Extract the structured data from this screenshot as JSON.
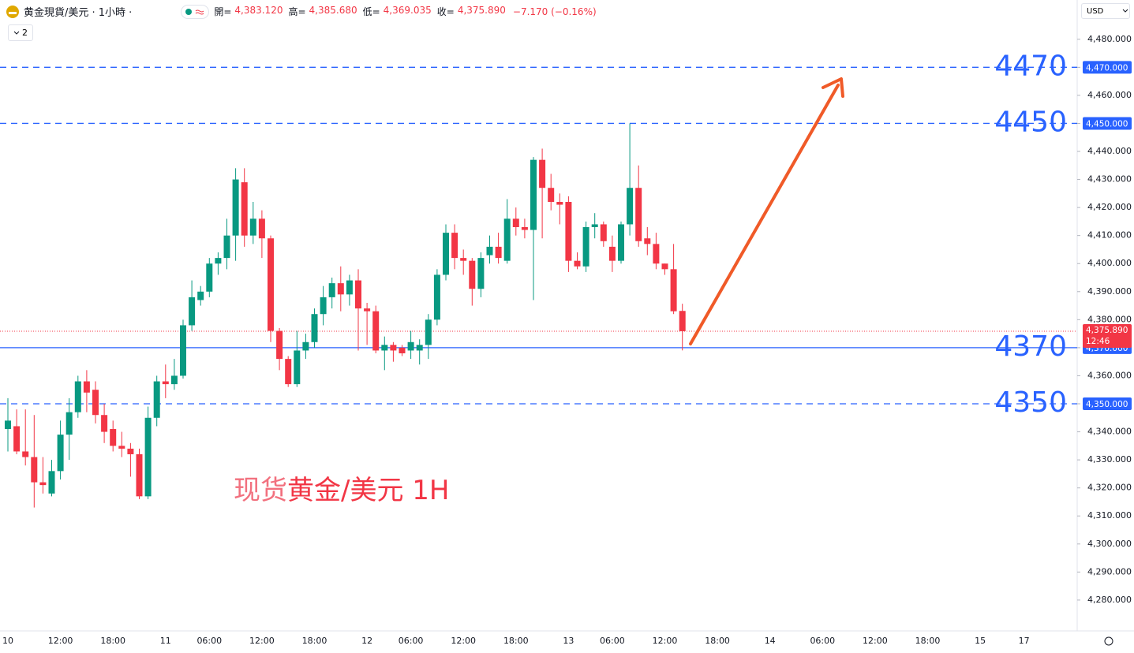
{
  "header": {
    "symbol": "黄金現貨/美元 · 1小時 ·",
    "indicator_count": "2",
    "currency": "USD",
    "ohlc": [
      {
        "label": "開=",
        "value": "4,383.120"
      },
      {
        "label": "高=",
        "value": "4,385.680"
      },
      {
        "label": "低=",
        "value": "4,369.035"
      },
      {
        "label": "收=",
        "value": "4,375.890"
      }
    ],
    "change": "−7.170 (−0.16%)"
  },
  "chart_data": {
    "type": "candlestick",
    "watermark": [
      "现货",
      "黄金/美元 1H"
    ],
    "up_color": "#089981",
    "down_color": "#f23645",
    "categories": [
      "10",
      null,
      null,
      null,
      null,
      null,
      "12:00",
      null,
      null,
      null,
      null,
      null,
      "18:00",
      null,
      null,
      null,
      null,
      null,
      "11",
      null,
      null,
      null,
      null,
      "06:00",
      null,
      null,
      null,
      null,
      null,
      "12:00",
      null,
      null,
      null,
      null,
      null,
      "18:00",
      null,
      null,
      null,
      null,
      null,
      "12",
      null,
      null,
      null,
      null,
      "06:00",
      null,
      null,
      null,
      null,
      null,
      "12:00",
      null,
      null,
      null,
      null,
      null,
      "18:00",
      null,
      null,
      null,
      null,
      null,
      "13",
      null,
      null,
      null,
      null,
      "06:00",
      null,
      null,
      null,
      null,
      null,
      "12:00",
      null,
      null,
      null,
      null,
      null,
      "18:00",
      null,
      null,
      null,
      null,
      null,
      "14",
      null,
      null,
      null,
      null,
      null,
      "06:00",
      null,
      null,
      null,
      null,
      null,
      "12:00",
      null,
      null,
      null,
      null,
      null,
      "18:00",
      null,
      null,
      null,
      null,
      null,
      "15",
      null,
      null,
      null,
      null,
      "17"
    ],
    "open": [
      4341,
      4342,
      4333,
      4331,
      4322,
      4318,
      4326,
      4339,
      4347,
      4358,
      4355,
      4346,
      4341,
      4335,
      4334,
      4332,
      4317,
      4345,
      4358,
      4357,
      4360,
      4378,
      4387,
      4390,
      4400,
      4402,
      4410,
      4429,
      4410,
      4416,
      4409,
      4376,
      4366,
      4357,
      4369,
      4372,
      4382,
      4388,
      4393,
      4389,
      4394,
      4384,
      4383,
      4369,
      4371,
      4370,
      4369,
      4369,
      4371,
      4380,
      4396,
      4411,
      4402,
      4401,
      4391,
      4403,
      4406,
      4401,
      4416,
      4413,
      4412,
      4437,
      4427,
      4422,
      4422,
      4401,
      4399,
      4413,
      4414,
      4406,
      4401,
      4414,
      4427,
      4409,
      4407,
      4400,
      4398,
      4383.12,
      null,
      null,
      null,
      null,
      null,
      null,
      null,
      null,
      null,
      null,
      null,
      null,
      null,
      null,
      null,
      null,
      null,
      null,
      null,
      null,
      null,
      null,
      null,
      null,
      null,
      null,
      null,
      null,
      null,
      null,
      null,
      null,
      null,
      null,
      null,
      null,
      null,
      null,
      null
    ],
    "high": [
      4352,
      4348,
      4348,
      4346,
      4331,
      4330,
      4344,
      4352,
      4360,
      4362,
      4358,
      4350,
      4344,
      4340,
      4336,
      4334,
      4349,
      4360,
      4364,
      4366,
      4380,
      4394,
      4392,
      4402,
      4404,
      4416,
      4434,
      4434,
      4422,
      4419,
      4410,
      4377,
      4367,
      4376,
      4375,
      4384,
      4392,
      4395,
      4399,
      4396,
      4398,
      4386,
      4385,
      4374,
      4372,
      4371,
      4376,
      4373,
      4382,
      4398,
      4414,
      4414,
      4405,
      4402,
      4404,
      4410,
      4411,
      4423,
      4420,
      4416,
      4438,
      4441,
      4432,
      4425,
      4424,
      4404,
      4415,
      4418,
      4415,
      4410,
      4415,
      4450,
      4435,
      4413,
      4411,
      4400,
      4407,
      4385.68,
      null,
      null,
      null,
      null,
      null,
      null,
      null,
      null,
      null,
      null,
      null,
      null,
      null,
      null,
      null,
      null,
      null,
      null,
      null,
      null,
      null,
      null,
      null,
      null,
      null,
      null,
      null,
      null,
      null,
      null,
      null,
      null,
      null,
      null,
      null,
      null,
      null,
      null,
      null
    ],
    "low": [
      4333,
      4332,
      4328,
      4313,
      4318,
      4317,
      4323,
      4330,
      4345,
      4347,
      4343,
      4336,
      4333,
      4331,
      4324,
      4316,
      4316,
      4342,
      4352,
      4355,
      4359,
      4376,
      4385,
      4388,
      4396,
      4398,
      4401,
      4406,
      4407,
      4402,
      4372,
      4362,
      4356,
      4356,
      4366,
      4370,
      4378,
      4384,
      4383,
      4385,
      4369,
      4371,
      4368,
      4362,
      4365,
      4367,
      4366,
      4364,
      4366,
      4378,
      4394,
      4398,
      4396,
      4385,
      4388,
      4400,
      4400,
      4400,
      4410,
      4409,
      4387,
      4409,
      4419,
      4414,
      4397,
      4398,
      4397,
      4409,
      4406,
      4397,
      4400,
      4410,
      4406,
      4403,
      4398,
      4396,
      4382,
      4369.035,
      null,
      null,
      null,
      null,
      null,
      null,
      null,
      null,
      null,
      null,
      null,
      null,
      null,
      null,
      null,
      null,
      null,
      null,
      null,
      null,
      null,
      null,
      null,
      null,
      null,
      null,
      null,
      null,
      null,
      null,
      null,
      null,
      null,
      null,
      null,
      null,
      null,
      null,
      null
    ],
    "close": [
      4344,
      4333,
      4331,
      4322,
      4321,
      4326,
      4339,
      4347,
      4358,
      4354,
      4346,
      4340,
      4335,
      4334,
      4332,
      4317,
      4345,
      4358,
      4357,
      4360,
      4378,
      4388,
      4390,
      4400,
      4402,
      4410,
      4430,
      4410,
      4416,
      4409,
      4376,
      4366,
      4357,
      4369,
      4372,
      4382,
      4388,
      4393,
      4389,
      4394,
      4384,
      4383,
      4369,
      4371,
      4369,
      4368,
      4372,
      4371,
      4380,
      4396,
      4411,
      4402,
      4401,
      4391,
      4402,
      4406,
      4402,
      4416,
      4413,
      4412,
      4437,
      4427,
      4422,
      4421,
      4401,
      4399,
      4413,
      4414,
      4408,
      4401,
      4414,
      4427,
      4408,
      4407,
      4400,
      4398,
      4383,
      4375.89,
      null,
      null,
      null,
      null,
      null,
      null,
      null,
      null,
      null,
      null,
      null,
      null,
      null,
      null,
      null,
      null,
      null,
      null,
      null,
      null,
      null,
      null,
      null,
      null,
      null,
      null,
      null,
      null,
      null,
      null,
      null,
      null,
      null,
      null,
      null,
      null,
      null,
      null,
      null
    ],
    "ylim": [
      4269,
      4494
    ],
    "yticks": [
      {
        "value": 4280,
        "label": "4,280.000"
      },
      {
        "value": 4290,
        "label": "4,290.000"
      },
      {
        "value": 4300,
        "label": "4,300.000"
      },
      {
        "value": 4310,
        "label": "4,310.000"
      },
      {
        "value": 4320,
        "label": "4,320.000"
      },
      {
        "value": 4330,
        "label": "4,330.000"
      },
      {
        "value": 4340,
        "label": "4,340.000"
      },
      {
        "value": 4350,
        "label": "4,350.000"
      },
      {
        "value": 4360,
        "label": "4,360.000"
      },
      {
        "value": 4370,
        "label": "4,370.000"
      },
      {
        "value": 4380,
        "label": "4,380.000"
      },
      {
        "value": 4390,
        "label": "4,390.000"
      },
      {
        "value": 4400,
        "label": "4,400.000"
      },
      {
        "value": 4410,
        "label": "4,410.000"
      },
      {
        "value": 4420,
        "label": "4,420.000"
      },
      {
        "value": 4430,
        "label": "4,430.000"
      },
      {
        "value": 4440,
        "label": "4,440.000"
      },
      {
        "value": 4450,
        "label": "4,450.000"
      },
      {
        "value": 4460,
        "label": "4,460.000"
      },
      {
        "value": 4470,
        "label": "4,470.000"
      },
      {
        "value": 4480,
        "label": "4,480.000"
      }
    ],
    "levels": [
      {
        "value": 4470,
        "label": "4,470.000",
        "style": "dashed"
      },
      {
        "value": 4450,
        "label": "4,450.000",
        "style": "dashed"
      },
      {
        "value": 4370,
        "label": "4,370.000",
        "style": "solid"
      },
      {
        "value": 4350,
        "label": "4,350.000",
        "style": "dashed"
      }
    ],
    "level_color": "#2962ff",
    "last_price": {
      "value": 4375.89,
      "label": "4,375.890",
      "countdown": "12:46"
    }
  }
}
